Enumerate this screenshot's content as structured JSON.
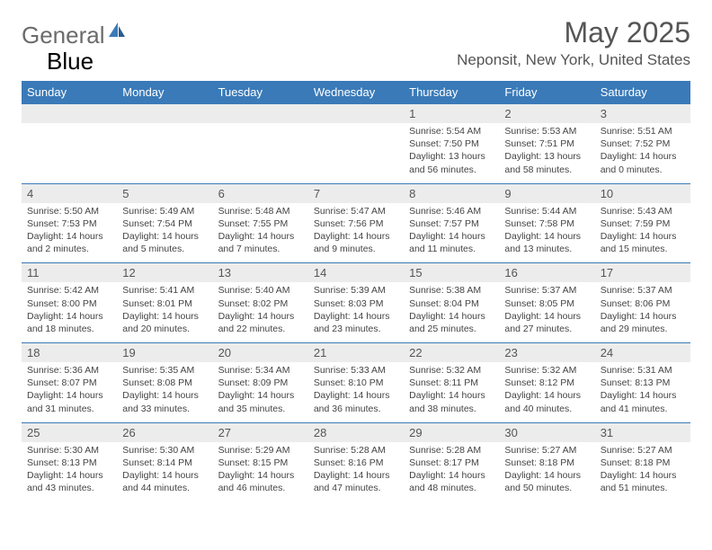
{
  "brand": {
    "part1": "General",
    "part2": "Blue"
  },
  "title": "May 2025",
  "location": "Neponsit, New York, United States",
  "weekdays": [
    "Sunday",
    "Monday",
    "Tuesday",
    "Wednesday",
    "Thursday",
    "Friday",
    "Saturday"
  ],
  "colors": {
    "header_bg": "#3a7ab8",
    "header_text": "#ffffff",
    "daynum_bg": "#ececec",
    "text": "#555555",
    "logo_gray": "#6b6b6b",
    "logo_blue": "#3a7ab8"
  },
  "weeks": [
    {
      "nums": [
        "",
        "",
        "",
        "",
        "1",
        "2",
        "3"
      ],
      "cells": [
        null,
        null,
        null,
        null,
        {
          "sunrise": "Sunrise: 5:54 AM",
          "sunset": "Sunset: 7:50 PM",
          "day1": "Daylight: 13 hours",
          "day2": "and 56 minutes."
        },
        {
          "sunrise": "Sunrise: 5:53 AM",
          "sunset": "Sunset: 7:51 PM",
          "day1": "Daylight: 13 hours",
          "day2": "and 58 minutes."
        },
        {
          "sunrise": "Sunrise: 5:51 AM",
          "sunset": "Sunset: 7:52 PM",
          "day1": "Daylight: 14 hours",
          "day2": "and 0 minutes."
        }
      ]
    },
    {
      "nums": [
        "4",
        "5",
        "6",
        "7",
        "8",
        "9",
        "10"
      ],
      "cells": [
        {
          "sunrise": "Sunrise: 5:50 AM",
          "sunset": "Sunset: 7:53 PM",
          "day1": "Daylight: 14 hours",
          "day2": "and 2 minutes."
        },
        {
          "sunrise": "Sunrise: 5:49 AM",
          "sunset": "Sunset: 7:54 PM",
          "day1": "Daylight: 14 hours",
          "day2": "and 5 minutes."
        },
        {
          "sunrise": "Sunrise: 5:48 AM",
          "sunset": "Sunset: 7:55 PM",
          "day1": "Daylight: 14 hours",
          "day2": "and 7 minutes."
        },
        {
          "sunrise": "Sunrise: 5:47 AM",
          "sunset": "Sunset: 7:56 PM",
          "day1": "Daylight: 14 hours",
          "day2": "and 9 minutes."
        },
        {
          "sunrise": "Sunrise: 5:46 AM",
          "sunset": "Sunset: 7:57 PM",
          "day1": "Daylight: 14 hours",
          "day2": "and 11 minutes."
        },
        {
          "sunrise": "Sunrise: 5:44 AM",
          "sunset": "Sunset: 7:58 PM",
          "day1": "Daylight: 14 hours",
          "day2": "and 13 minutes."
        },
        {
          "sunrise": "Sunrise: 5:43 AM",
          "sunset": "Sunset: 7:59 PM",
          "day1": "Daylight: 14 hours",
          "day2": "and 15 minutes."
        }
      ]
    },
    {
      "nums": [
        "11",
        "12",
        "13",
        "14",
        "15",
        "16",
        "17"
      ],
      "cells": [
        {
          "sunrise": "Sunrise: 5:42 AM",
          "sunset": "Sunset: 8:00 PM",
          "day1": "Daylight: 14 hours",
          "day2": "and 18 minutes."
        },
        {
          "sunrise": "Sunrise: 5:41 AM",
          "sunset": "Sunset: 8:01 PM",
          "day1": "Daylight: 14 hours",
          "day2": "and 20 minutes."
        },
        {
          "sunrise": "Sunrise: 5:40 AM",
          "sunset": "Sunset: 8:02 PM",
          "day1": "Daylight: 14 hours",
          "day2": "and 22 minutes."
        },
        {
          "sunrise": "Sunrise: 5:39 AM",
          "sunset": "Sunset: 8:03 PM",
          "day1": "Daylight: 14 hours",
          "day2": "and 23 minutes."
        },
        {
          "sunrise": "Sunrise: 5:38 AM",
          "sunset": "Sunset: 8:04 PM",
          "day1": "Daylight: 14 hours",
          "day2": "and 25 minutes."
        },
        {
          "sunrise": "Sunrise: 5:37 AM",
          "sunset": "Sunset: 8:05 PM",
          "day1": "Daylight: 14 hours",
          "day2": "and 27 minutes."
        },
        {
          "sunrise": "Sunrise: 5:37 AM",
          "sunset": "Sunset: 8:06 PM",
          "day1": "Daylight: 14 hours",
          "day2": "and 29 minutes."
        }
      ]
    },
    {
      "nums": [
        "18",
        "19",
        "20",
        "21",
        "22",
        "23",
        "24"
      ],
      "cells": [
        {
          "sunrise": "Sunrise: 5:36 AM",
          "sunset": "Sunset: 8:07 PM",
          "day1": "Daylight: 14 hours",
          "day2": "and 31 minutes."
        },
        {
          "sunrise": "Sunrise: 5:35 AM",
          "sunset": "Sunset: 8:08 PM",
          "day1": "Daylight: 14 hours",
          "day2": "and 33 minutes."
        },
        {
          "sunrise": "Sunrise: 5:34 AM",
          "sunset": "Sunset: 8:09 PM",
          "day1": "Daylight: 14 hours",
          "day2": "and 35 minutes."
        },
        {
          "sunrise": "Sunrise: 5:33 AM",
          "sunset": "Sunset: 8:10 PM",
          "day1": "Daylight: 14 hours",
          "day2": "and 36 minutes."
        },
        {
          "sunrise": "Sunrise: 5:32 AM",
          "sunset": "Sunset: 8:11 PM",
          "day1": "Daylight: 14 hours",
          "day2": "and 38 minutes."
        },
        {
          "sunrise": "Sunrise: 5:32 AM",
          "sunset": "Sunset: 8:12 PM",
          "day1": "Daylight: 14 hours",
          "day2": "and 40 minutes."
        },
        {
          "sunrise": "Sunrise: 5:31 AM",
          "sunset": "Sunset: 8:13 PM",
          "day1": "Daylight: 14 hours",
          "day2": "and 41 minutes."
        }
      ]
    },
    {
      "nums": [
        "25",
        "26",
        "27",
        "28",
        "29",
        "30",
        "31"
      ],
      "cells": [
        {
          "sunrise": "Sunrise: 5:30 AM",
          "sunset": "Sunset: 8:13 PM",
          "day1": "Daylight: 14 hours",
          "day2": "and 43 minutes."
        },
        {
          "sunrise": "Sunrise: 5:30 AM",
          "sunset": "Sunset: 8:14 PM",
          "day1": "Daylight: 14 hours",
          "day2": "and 44 minutes."
        },
        {
          "sunrise": "Sunrise: 5:29 AM",
          "sunset": "Sunset: 8:15 PM",
          "day1": "Daylight: 14 hours",
          "day2": "and 46 minutes."
        },
        {
          "sunrise": "Sunrise: 5:28 AM",
          "sunset": "Sunset: 8:16 PM",
          "day1": "Daylight: 14 hours",
          "day2": "and 47 minutes."
        },
        {
          "sunrise": "Sunrise: 5:28 AM",
          "sunset": "Sunset: 8:17 PM",
          "day1": "Daylight: 14 hours",
          "day2": "and 48 minutes."
        },
        {
          "sunrise": "Sunrise: 5:27 AM",
          "sunset": "Sunset: 8:18 PM",
          "day1": "Daylight: 14 hours",
          "day2": "and 50 minutes."
        },
        {
          "sunrise": "Sunrise: 5:27 AM",
          "sunset": "Sunset: 8:18 PM",
          "day1": "Daylight: 14 hours",
          "day2": "and 51 minutes."
        }
      ]
    }
  ]
}
